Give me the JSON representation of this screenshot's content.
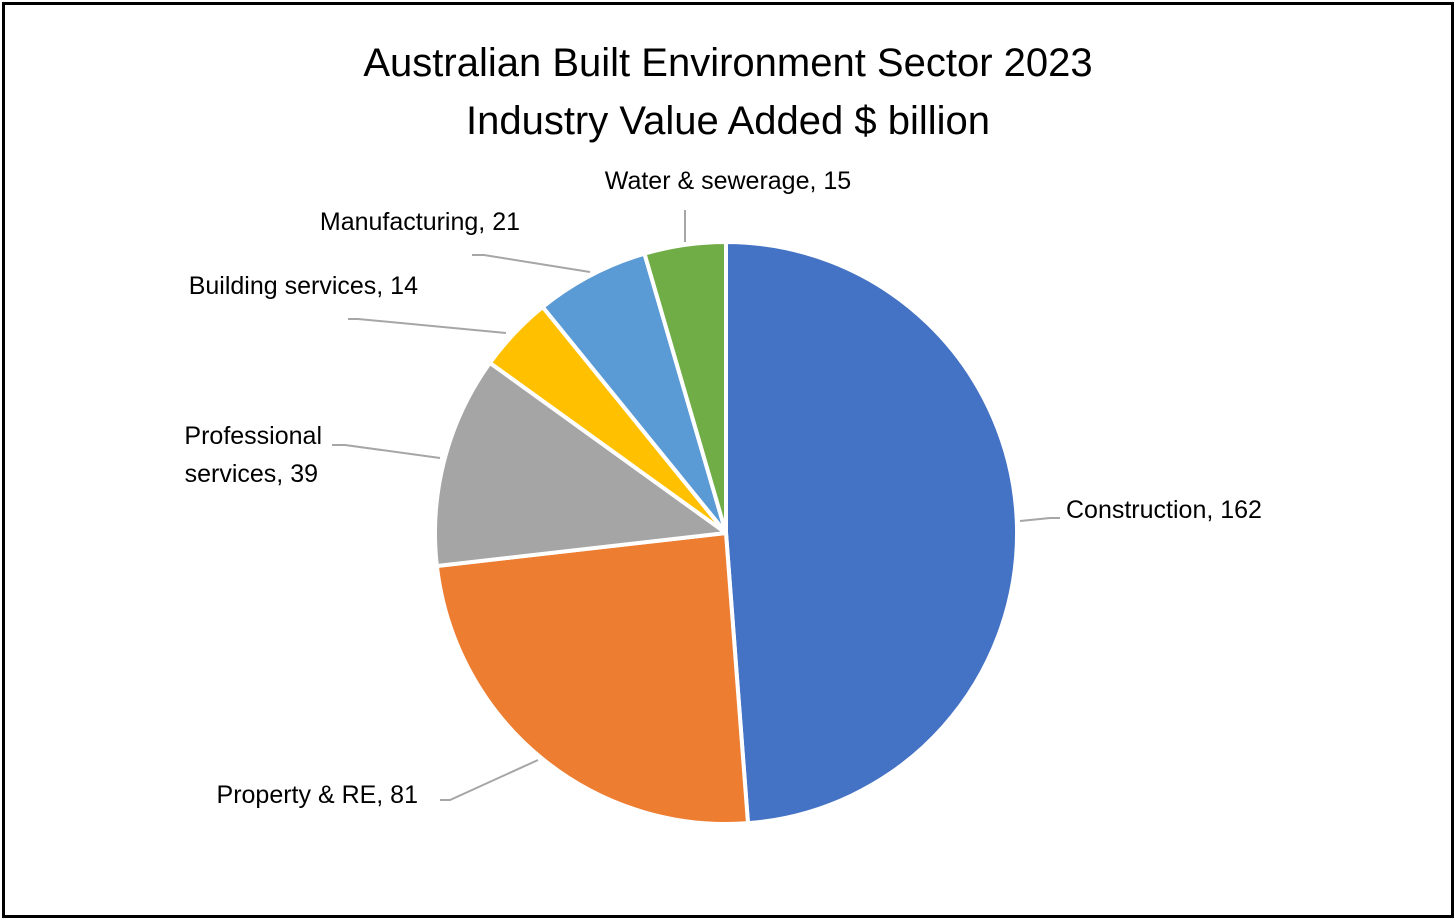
{
  "chart_data": {
    "type": "pie",
    "title": "Australian Built Environment Sector 2023",
    "subtitle": "Industry Value Added $ billion",
    "slices": [
      {
        "label": "Construction",
        "value": 162,
        "color": "#4472C4",
        "data_label": "Construction, 162"
      },
      {
        "label": "Property & RE",
        "value": 81,
        "color": "#ED7D31",
        "data_label": "Property & RE, 81"
      },
      {
        "label": "Professional services",
        "value": 39,
        "color": "#A5A5A5",
        "data_label_lines": [
          "Professional",
          "services, 39"
        ]
      },
      {
        "label": "Building services",
        "value": 14,
        "color": "#FFC000",
        "data_label": "Building services, 14"
      },
      {
        "label": "Manufacturing",
        "value": 21,
        "color": "#5B9BD5",
        "data_label": "Manufacturing, 21"
      },
      {
        "label": "Water & sewerage",
        "value": 15,
        "color": "#70AD47",
        "data_label": "Water & sewerage, 15"
      }
    ],
    "legend": "none",
    "leader_line_color": "#A6A6A6"
  }
}
